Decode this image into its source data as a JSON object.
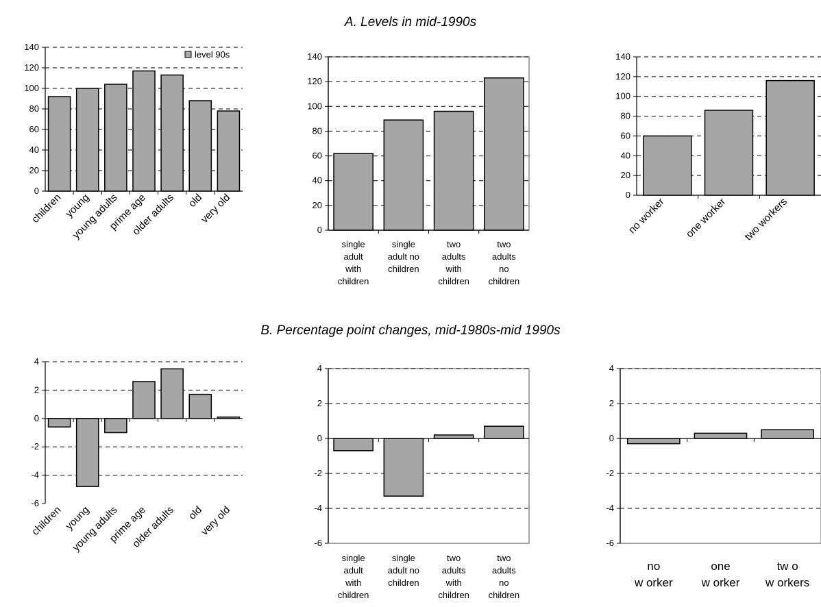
{
  "section_a_title": "A. Levels in mid-1990s",
  "section_b_title": "B. Percentage point changes, mid-1980s-mid 1990s",
  "colors": {
    "bar_fill": "#a6a6a6",
    "bar_stroke": "#000000",
    "grid": "#000000"
  },
  "chart_data": [
    {
      "type": "bar",
      "categories": [
        "children",
        "young",
        "young adults",
        "prime age",
        "older adults",
        "old",
        "very old"
      ],
      "series": [
        {
          "name": "level 90s",
          "values": [
            92,
            100,
            104,
            117,
            113,
            88,
            78
          ]
        }
      ],
      "ylim": [
        0,
        140
      ],
      "yticks": [
        "0",
        "20",
        "40",
        "60",
        "80",
        "100",
        "120",
        "140"
      ],
      "grid": true,
      "legend": "top-right"
    },
    {
      "type": "bar",
      "categories": [
        "single adult with children",
        "single adult no children",
        "two adults with children",
        "two adults no children"
      ],
      "category_lines": [
        [
          "single",
          "adult",
          "with",
          "children"
        ],
        [
          "single",
          "adult no",
          "children"
        ],
        [
          "two",
          "adults",
          "with",
          "children"
        ],
        [
          "two",
          "adults",
          "no",
          "children"
        ]
      ],
      "values": [
        62,
        89,
        96,
        123
      ],
      "ylim": [
        0,
        140
      ],
      "yticks": [
        "0",
        "20",
        "40",
        "60",
        "80",
        "100",
        "120",
        "140"
      ],
      "grid": true
    },
    {
      "type": "bar",
      "categories": [
        "no worker",
        "one worker",
        "two workers"
      ],
      "values": [
        60,
        86,
        116
      ],
      "ylim": [
        0,
        140
      ],
      "yticks": [
        "0",
        "20",
        "40",
        "60",
        "80",
        "100",
        "120",
        "140"
      ],
      "grid": true
    },
    {
      "type": "bar",
      "categories": [
        "children",
        "young",
        "young adults",
        "prime age",
        "older adults",
        "old",
        "very old"
      ],
      "values": [
        -0.6,
        -4.8,
        -1.0,
        2.6,
        3.5,
        1.7,
        0.1
      ],
      "ylim": [
        -6,
        4
      ],
      "yticks": [
        "-6",
        "-4",
        "-2",
        "0",
        "2",
        "4"
      ],
      "grid": true
    },
    {
      "type": "bar",
      "categories": [
        "single adult with children",
        "single adult no children",
        "two adults with children",
        "two adults no children"
      ],
      "category_lines": [
        [
          "single",
          "adult",
          "with",
          "children"
        ],
        [
          "single",
          "adult no",
          "children"
        ],
        [
          "two",
          "adults",
          "with",
          "children"
        ],
        [
          "two",
          "adults",
          "no",
          "children"
        ]
      ],
      "values": [
        -0.7,
        -3.3,
        0.2,
        0.7
      ],
      "ylim": [
        -6,
        4
      ],
      "yticks": [
        "-6",
        "-4",
        "-2",
        "0",
        "2",
        "4"
      ],
      "grid": true
    },
    {
      "type": "bar",
      "categories": [
        "no worker",
        "one worker",
        "two workers"
      ],
      "category_lines": [
        [
          "no",
          "w orker"
        ],
        [
          "one",
          "w orker"
        ],
        [
          "tw o",
          "w orkers"
        ]
      ],
      "values": [
        -0.3,
        0.3,
        0.5
      ],
      "ylim": [
        -6,
        4
      ],
      "yticks": [
        "-6",
        "-4",
        "-2",
        "0",
        "2",
        "4"
      ],
      "grid": true
    }
  ]
}
